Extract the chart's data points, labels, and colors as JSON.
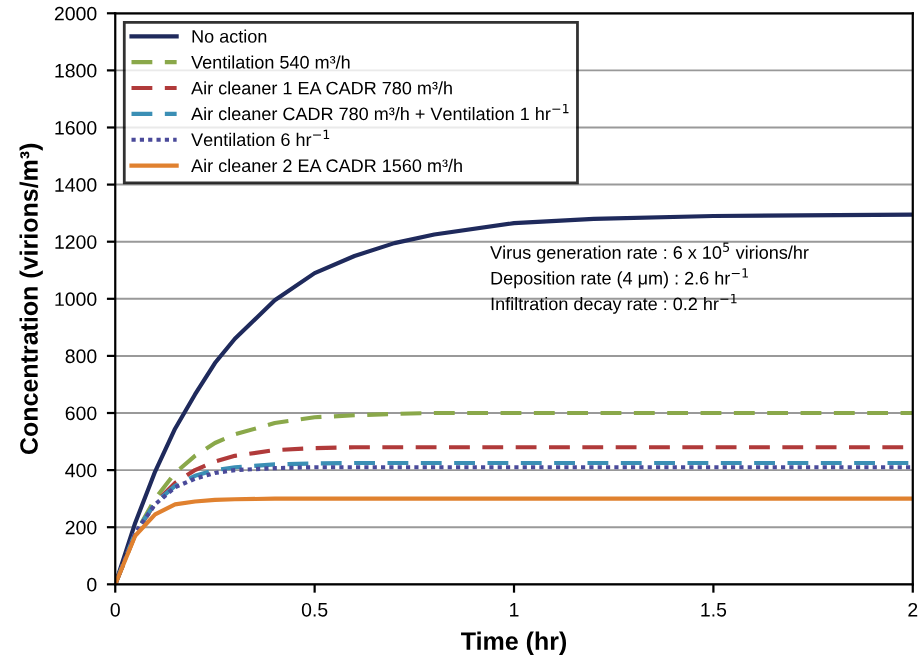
{
  "chart_data": {
    "type": "line",
    "xlabel": "Time (hr)",
    "ylabel": "Concentration (virions/m³)",
    "x": [
      0,
      0.05,
      0.1,
      0.15,
      0.2,
      0.25,
      0.3,
      0.4,
      0.5,
      0.6,
      0.7,
      0.8,
      1.0,
      1.2,
      1.5,
      2.0
    ],
    "series": [
      {
        "name": "No action",
        "color": "#1f2a5c",
        "line_style": "solid",
        "values": [
          0,
          215,
          395,
          545,
          665,
          775,
          860,
          995,
          1090,
          1150,
          1195,
          1225,
          1265,
          1280,
          1290,
          1295
        ]
      },
      {
        "name": "Ventilation 540 m³/h",
        "color": "#8aa84a",
        "line_style": "dashed",
        "values": [
          0,
          175,
          300,
          390,
          450,
          495,
          525,
          565,
          585,
          592,
          597,
          600,
          600,
          600,
          600,
          600
        ]
      },
      {
        "name": "Air cleaner 1 EA CADR 780 m³/h",
        "color": "#b03a3a",
        "line_style": "dashed",
        "values": [
          0,
          175,
          285,
          355,
          400,
          430,
          450,
          470,
          477,
          480,
          480,
          480,
          480,
          480,
          480,
          480
        ]
      },
      {
        "name": "Air cleaner CADR 780 m³/h + Ventilation 1 hr$^{−1}$",
        "color": "#3b8fb5",
        "line_style": "dashed",
        "values": [
          0,
          180,
          285,
          345,
          380,
          400,
          410,
          420,
          423,
          425,
          425,
          425,
          425,
          425,
          425,
          425
        ]
      },
      {
        "name": "Ventilation 6 hr$^{−1}$",
        "color": "#4a4a9a",
        "line_style": "dotted",
        "values": [
          0,
          180,
          280,
          340,
          370,
          390,
          400,
          407,
          410,
          410,
          410,
          410,
          410,
          410,
          410,
          410
        ]
      },
      {
        "name": "Air cleaner 2 EA CADR 1560 m³/h",
        "color": "#e0812f",
        "line_style": "solid",
        "values": [
          0,
          170,
          245,
          280,
          290,
          296,
          298,
          300,
          300,
          300,
          300,
          300,
          300,
          300,
          300,
          300
        ]
      }
    ],
    "xlim": [
      0,
      2
    ],
    "xticks": [
      0,
      0.5,
      1,
      1.5,
      2
    ],
    "ylim": [
      0,
      2000
    ],
    "yticks": [
      0,
      200,
      400,
      600,
      800,
      1000,
      1200,
      1400,
      1600,
      1800,
      2000
    ],
    "grid": "y",
    "legend": "top left",
    "marker": "none",
    "annotations": [
      "Virus generation rate : 6 x 10$^{5}$ virions/hr",
      "Deposition rate (4 μm) : 2.6 hr$^{−1}$",
      "Infiltration decay rate : 0.2 hr$^{−1}$"
    ]
  }
}
